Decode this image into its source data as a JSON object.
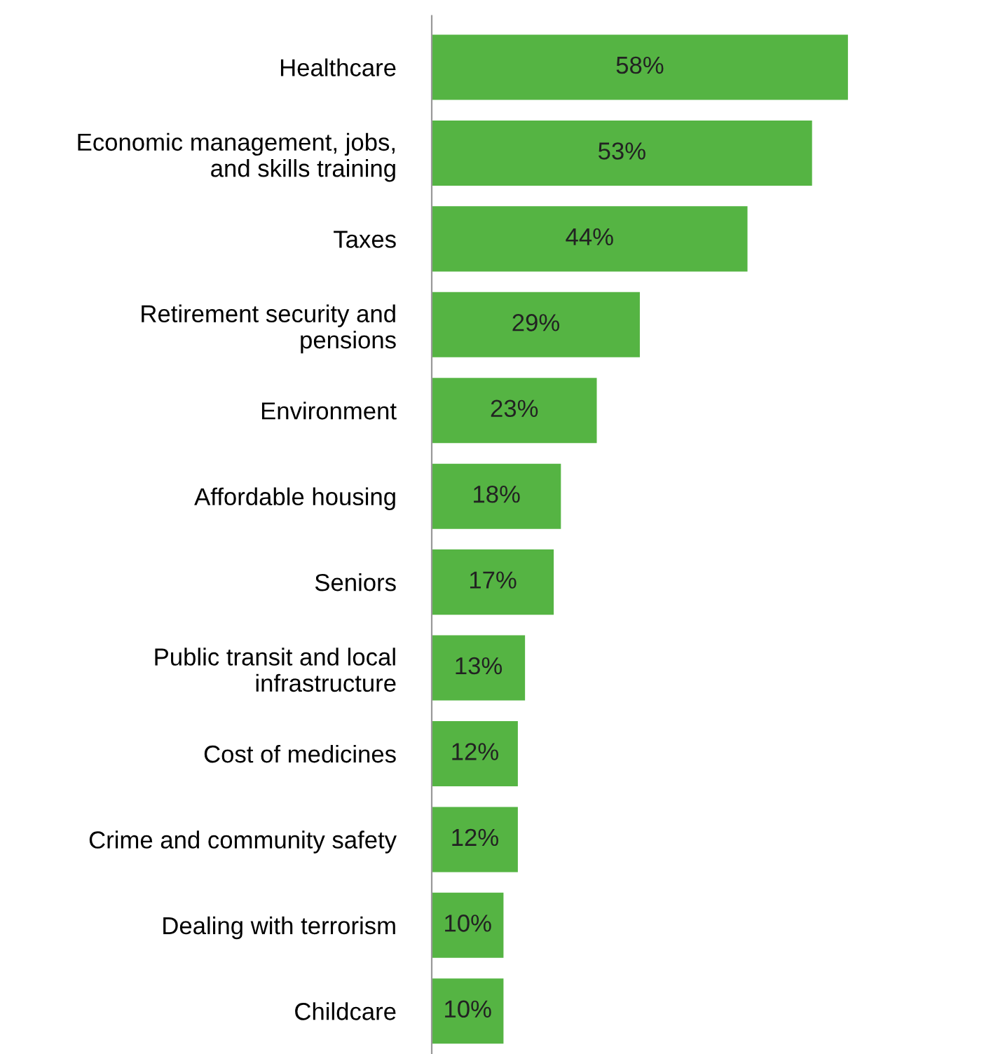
{
  "chart_data": {
    "type": "bar",
    "orientation": "horizontal",
    "categories": [
      "Healthcare",
      "Economic management, jobs,\nand skills training",
      "Taxes",
      "Retirement security and\npensions",
      "Environment",
      "Affordable housing",
      "Seniors",
      "Public transit and local\ninfrastructure",
      "Cost of medicines",
      "Crime and community safety",
      "Dealing with terrorism",
      "Childcare"
    ],
    "values": [
      58,
      53,
      44,
      29,
      23,
      18,
      17,
      13,
      12,
      12,
      10,
      10
    ],
    "value_labels": [
      "58%",
      "53%",
      "44%",
      "29%",
      "23%",
      "18%",
      "17%",
      "13%",
      "12%",
      "12%",
      "10%",
      "10%"
    ],
    "color": "#55b443",
    "tick_labels": "y",
    "grid": false,
    "legend": false
  }
}
